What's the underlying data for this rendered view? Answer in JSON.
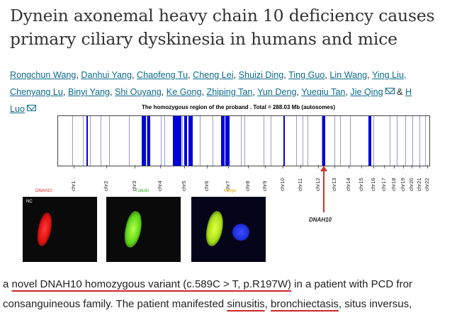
{
  "title": "Dynein axonemal heavy chain 10 deficiency causes primary ciliary dyskinesia in humans and mice",
  "authors_line1": [
    "Rongchun Wang",
    "Danhui Yang",
    "Chaofeng Tu",
    "Cheng Lei",
    "Shuizi Ding",
    "Ting Guo",
    "Lin Wang",
    "Ying Liu,"
  ],
  "authors_line2": [
    "Chenyang Lu",
    "Binyi Yang",
    "Shi Ouyang",
    "Ke Gong",
    "Zhiping Tan",
    "Yun Deng",
    "Yueqiu Tan",
    "Jie Qing"
  ],
  "authors_amp": "&",
  "authors_cut": "H",
  "author_last": "Luo",
  "icons": {
    "email": "email-icon"
  },
  "figure": {
    "title": "The homozygous region of the proband . Total = 288.03 Mb (autosomes)",
    "chromosomes": [
      "chr1",
      "chr2",
      "chr3",
      "chr4",
      "chr5",
      "chr6",
      "chr7",
      "chr8",
      "chr9",
      "chr10",
      "chr11",
      "chr12",
      "chr13",
      "chr14",
      "chr15",
      "chr16",
      "chr17",
      "chr18",
      "chr19",
      "chr20",
      "chr21",
      "chr22"
    ],
    "gene_label": "DNAH10",
    "panel_nc": "NC",
    "panel_labels": [
      "DNAH10",
      "Tubulin",
      "Merge"
    ],
    "colors": {
      "homozygous_block": "#0000dd",
      "arrow": "#c0392b",
      "dnah10": "#ff2a2a",
      "tubulin": "#7cff2a",
      "merge": "#cfff2a",
      "nucleus": "#2233ff"
    }
  },
  "body": {
    "l1_pre": "a ",
    "l1_ul": "novel DNAH10 homozygous variant (c.589C > T, p.R197W)",
    "l1_post": " in a patient with PCD fror",
    "l2_pre": "consanguineous family. The patient manifested ",
    "l2_ul1": "sinusitis",
    "l2_mid": ", ",
    "l2_ul2": "bronchiectasis",
    "l2_post": ", situs inversus,"
  }
}
